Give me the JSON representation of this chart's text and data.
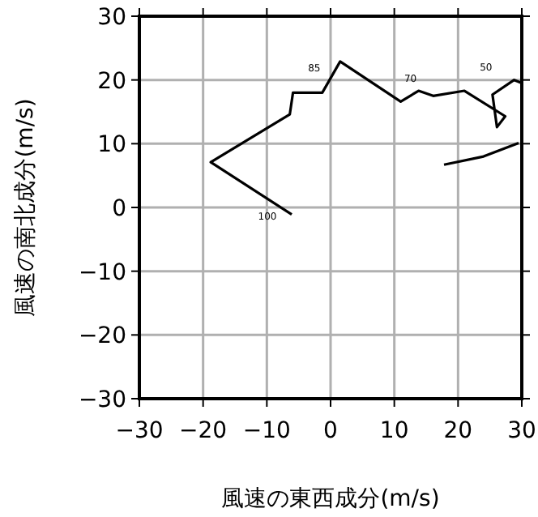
{
  "chart_data": {
    "type": "line",
    "xlabel": "風速の東西成分(m/s)",
    "ylabel": "風速の南北成分(m/s)",
    "x": [
      -6.1,
      -18.8,
      -6.4,
      -5.9,
      -1.3,
      1.5,
      11.0,
      13.8,
      16.1,
      21.0,
      27.4,
      26.1,
      25.4,
      28.8,
      30,
      null,
      29.5,
      24.0,
      17.8
    ],
    "values": [
      -1.1,
      7.1,
      14.6,
      18.0,
      18.0,
      22.9,
      16.6,
      18.3,
      17.5,
      18.3,
      14.3,
      12.6,
      17.7,
      20.0,
      19.5,
      null,
      10.1,
      8.0,
      6.7
    ],
    "color": "#000000",
    "xlim": [
      -30,
      30
    ],
    "ylim": [
      -30,
      30
    ],
    "xticks": [
      -30,
      -20,
      -10,
      0,
      10,
      20,
      30
    ],
    "yticks": [
      -30,
      -20,
      -10,
      0,
      10,
      20,
      30
    ],
    "grid": true,
    "annotations": [
      {
        "text": "100",
        "x": -6.1,
        "y": -1.1
      },
      {
        "text": "85",
        "x": -1.3,
        "y": 18.0
      },
      {
        "text": "70",
        "x": 11.0,
        "y": 16.6
      },
      {
        "text": "50",
        "x": 25.4,
        "y": 17.7
      }
    ]
  }
}
